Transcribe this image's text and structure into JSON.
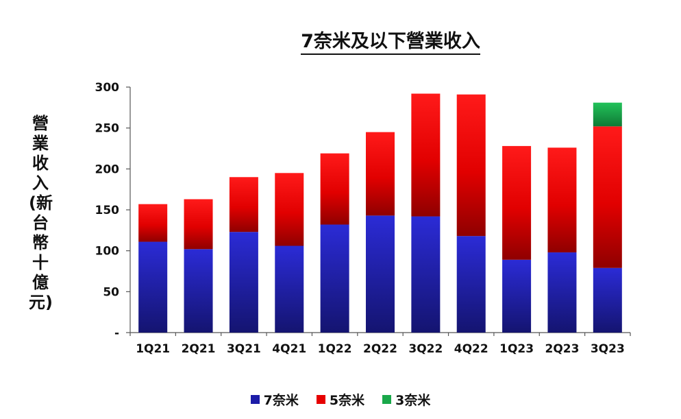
{
  "chart_data": {
    "type": "bar",
    "stacked": true,
    "title": "7奈米及以下營業收入",
    "ylabel": "營業收入(新台幣十億元)",
    "xlabel": "",
    "categories": [
      "1Q21",
      "2Q21",
      "3Q21",
      "4Q21",
      "1Q22",
      "2Q22",
      "3Q22",
      "4Q22",
      "1Q23",
      "2Q23",
      "3Q23"
    ],
    "series": [
      {
        "name": "7奈米",
        "color": "#1c1ca8",
        "values": [
          111,
          102,
          123,
          106,
          132,
          143,
          142,
          118,
          89,
          98,
          79
        ]
      },
      {
        "name": "5奈米",
        "color": "#e60000",
        "values": [
          46,
          61,
          67,
          89,
          87,
          102,
          150,
          173,
          139,
          128,
          173
        ]
      },
      {
        "name": "3奈米",
        "color": "#1aa84a",
        "values": [
          0,
          0,
          0,
          0,
          0,
          0,
          0,
          0,
          0,
          0,
          29
        ]
      }
    ],
    "ylim": [
      0,
      300
    ],
    "yticks": [
      0,
      50,
      100,
      150,
      200,
      250,
      300
    ],
    "ytick_labels": [
      "-",
      "50",
      "100",
      "150",
      "200",
      "250",
      "300"
    ],
    "grid": false,
    "legend_position": "bottom"
  }
}
